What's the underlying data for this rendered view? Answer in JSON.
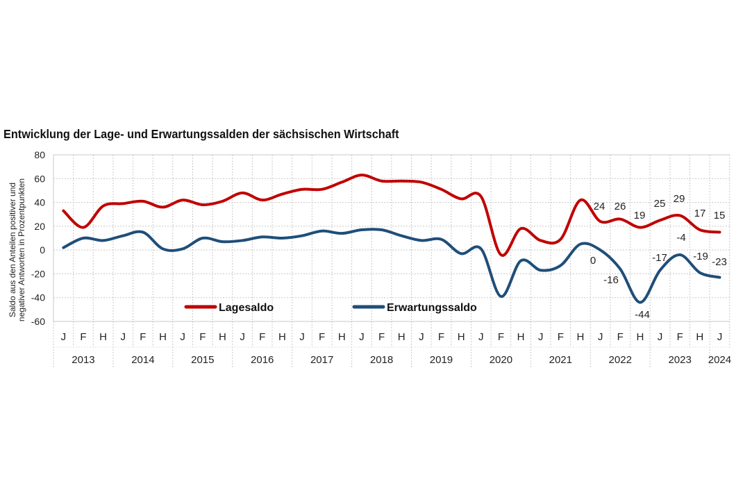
{
  "chart_data": {
    "type": "line",
    "title": "Entwicklung der Lage- und Erwartungssalden der sächsischen Wirtschaft",
    "ylabel": [
      "Saldo aus den Anteilen positiver und",
      "negativer Antworten in Prozentpunkten"
    ],
    "xlabel": "",
    "ylim": [
      -60,
      80
    ],
    "yticks": [
      80,
      60,
      40,
      20,
      0,
      -20,
      -40,
      -60
    ],
    "grid": true,
    "legend_placement": "bottom-inside",
    "categories": [
      "J",
      "F",
      "H",
      "J",
      "F",
      "H",
      "J",
      "F",
      "H",
      "J",
      "F",
      "H",
      "J",
      "F",
      "H",
      "J",
      "F",
      "H",
      "J",
      "F",
      "H",
      "J",
      "F",
      "H",
      "J",
      "F",
      "H",
      "J",
      "F",
      "H",
      "J",
      "F",
      "H",
      "J"
    ],
    "years": [
      "2013",
      "2014",
      "2015",
      "2016",
      "2017",
      "2018",
      "2019",
      "2020",
      "2021",
      "2022",
      "2023",
      "2024"
    ],
    "series": [
      {
        "name": "Lagesaldo",
        "color": "#c00000",
        "values": [
          33,
          19,
          37,
          39,
          41,
          36,
          42,
          38,
          41,
          48,
          42,
          47,
          51,
          51,
          57,
          63,
          58,
          58,
          57,
          51,
          43,
          45,
          -4,
          18,
          8,
          9,
          42,
          24,
          26,
          19,
          25,
          29,
          17,
          15
        ],
        "labels": {
          "27": "24",
          "28": "26",
          "29": "19",
          "30": "25",
          "31": "29",
          "32": "17",
          "33": "15"
        }
      },
      {
        "name": "Erwartungssaldo",
        "color": "#1f4e79",
        "values": [
          2,
          10,
          8,
          12,
          15,
          1,
          1,
          10,
          7,
          8,
          11,
          10,
          12,
          16,
          14,
          17,
          17,
          12,
          8,
          9,
          -3,
          1,
          -39,
          -9,
          -17,
          -13,
          5,
          0,
          -16,
          -44,
          -17,
          -4,
          -19,
          -23
        ],
        "labels": {
          "27": "0",
          "28": "-16",
          "29": "-44",
          "30": "-17",
          "31": "-4",
          "32": "-19",
          "33": "-23"
        }
      }
    ]
  }
}
